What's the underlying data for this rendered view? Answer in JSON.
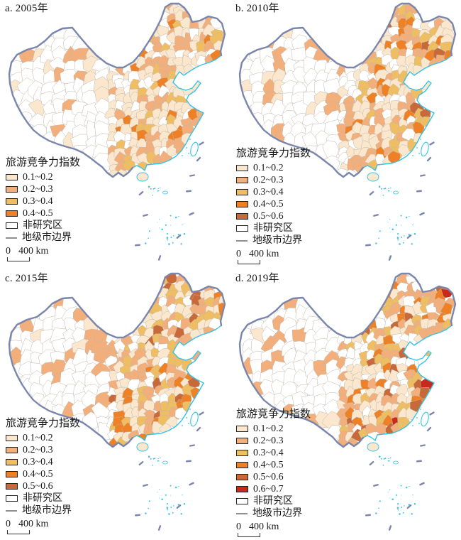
{
  "figure": {
    "type": "choropleth-map-grid",
    "region": "China",
    "map_colors": {
      "coastline": "#35C3E8",
      "national_boundary": "#7B86AD",
      "city_boundary": "#C0B6A8",
      "non_study_fill": "#FFFFFF",
      "text": "#1A1A1A"
    },
    "panels": [
      {
        "id": "a",
        "title": "a. 2005年",
        "legend_title": "旅游竞争力指数",
        "classes": [
          {
            "label": "0.1~0.2",
            "color": "#FAE7CE"
          },
          {
            "label": "0.2~0.3",
            "color": "#F2AF7C"
          },
          {
            "label": "0.3~0.4",
            "color": "#EFBE62"
          },
          {
            "label": "0.4~0.5",
            "color": "#EE8125"
          }
        ],
        "non_study_label": "非研究区",
        "boundary_label": "地级市边界",
        "scale": {
          "zero": "0",
          "distance": "400 km"
        }
      },
      {
        "id": "b",
        "title": "b. 2010年",
        "legend_title": "旅游竞争力指数",
        "classes": [
          {
            "label": "0.1~0.2",
            "color": "#FAE7CE"
          },
          {
            "label": "0.2~0.3",
            "color": "#F2AF7C"
          },
          {
            "label": "0.3~0.4",
            "color": "#EFBE62"
          },
          {
            "label": "0.4~0.5",
            "color": "#EE8125"
          },
          {
            "label": "0.5~0.6",
            "color": "#C8693A"
          }
        ],
        "non_study_label": "非研究区",
        "boundary_label": "地级市边界",
        "scale": {
          "zero": "0",
          "distance": "400 km"
        }
      },
      {
        "id": "c",
        "title": "c. 2015年",
        "legend_title": "旅游竞争力指数",
        "classes": [
          {
            "label": "0.1~0.2",
            "color": "#FAE7CE"
          },
          {
            "label": "0.2~0.3",
            "color": "#F2AF7C"
          },
          {
            "label": "0.3~0.4",
            "color": "#EFBE62"
          },
          {
            "label": "0.4~0.5",
            "color": "#EE8125"
          },
          {
            "label": "0.5~0.6",
            "color": "#C8693A"
          }
        ],
        "non_study_label": "非研究区",
        "boundary_label": "地级市边界",
        "scale": {
          "zero": "0",
          "distance": "400 km"
        }
      },
      {
        "id": "d",
        "title": "d. 2019年",
        "legend_title": "旅游竞争力指数",
        "classes": [
          {
            "label": "0.1~0.2",
            "color": "#FAE7CE"
          },
          {
            "label": "0.2~0.3",
            "color": "#F2AF7C"
          },
          {
            "label": "0.3~0.4",
            "color": "#EFBE62"
          },
          {
            "label": "0.4~0.5",
            "color": "#EE8125"
          },
          {
            "label": "0.5~0.6",
            "color": "#C8693A"
          },
          {
            "label": "0.6~0.7",
            "color": "#C7291B"
          }
        ],
        "non_study_label": "非研究区",
        "boundary_label": "地级市边界",
        "scale": {
          "zero": "0",
          "distance": "400 km"
        }
      }
    ]
  }
}
